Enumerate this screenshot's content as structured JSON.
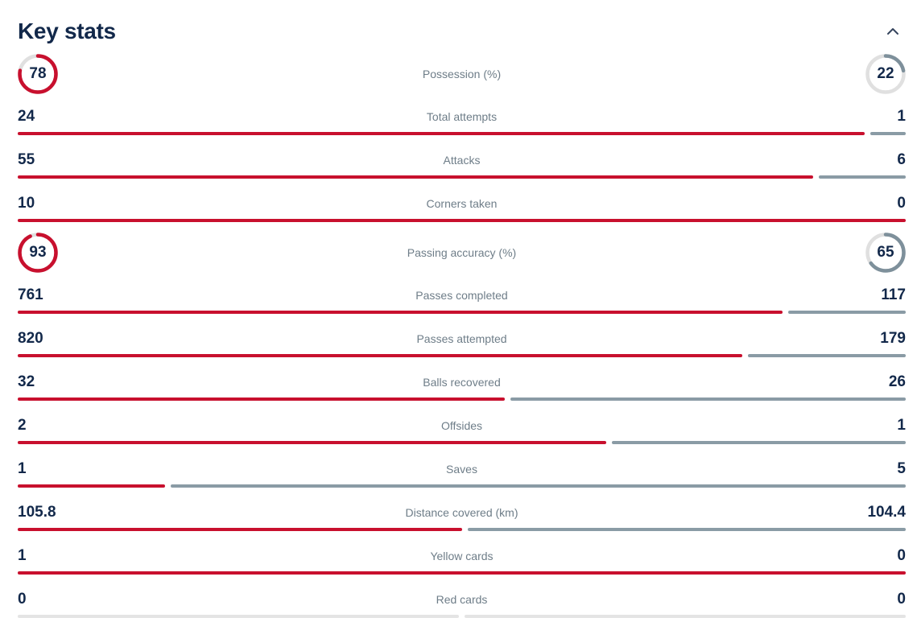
{
  "header": {
    "title": "Key stats",
    "collapse_icon": "chevron-up"
  },
  "colors": {
    "home": "#C8102E",
    "away_bar": "#8A9BA5",
    "away_ring": "#7E909B",
    "ring_track": "#E0E0E0",
    "empty_bar": "#E4E4E4",
    "text_dark": "#12284A",
    "label_gray": "#6E7D88"
  },
  "chart_data": {
    "type": "bar",
    "title": "Key stats",
    "orientation": "horizontal-split",
    "legend_position": "none",
    "series": [
      {
        "name": "home",
        "color": "#C8102E"
      },
      {
        "name": "away",
        "color": "#8A9BA5"
      }
    ],
    "rows": [
      {
        "label": "Possession (%)",
        "home": 78,
        "away": 22,
        "display": "ring"
      },
      {
        "label": "Total attempts",
        "home": 24,
        "away": 1,
        "display": "bar"
      },
      {
        "label": "Attacks",
        "home": 55,
        "away": 6,
        "display": "bar"
      },
      {
        "label": "Corners taken",
        "home": 10,
        "away": 0,
        "display": "bar"
      },
      {
        "label": "Passing accuracy (%)",
        "home": 93,
        "away": 65,
        "display": "ring"
      },
      {
        "label": "Passes completed",
        "home": 761,
        "away": 117,
        "display": "bar"
      },
      {
        "label": "Passes attempted",
        "home": 820,
        "away": 179,
        "display": "bar"
      },
      {
        "label": "Balls recovered",
        "home": 32,
        "away": 26,
        "display": "bar"
      },
      {
        "label": "Offsides",
        "home": 2,
        "away": 1,
        "display": "bar"
      },
      {
        "label": "Saves",
        "home": 1,
        "away": 5,
        "display": "bar"
      },
      {
        "label": "Distance covered (km)",
        "home": 105.8,
        "away": 104.4,
        "display": "bar"
      },
      {
        "label": "Yellow cards",
        "home": 1,
        "away": 0,
        "display": "bar"
      },
      {
        "label": "Red cards",
        "home": 0,
        "away": 0,
        "display": "bar"
      }
    ]
  }
}
